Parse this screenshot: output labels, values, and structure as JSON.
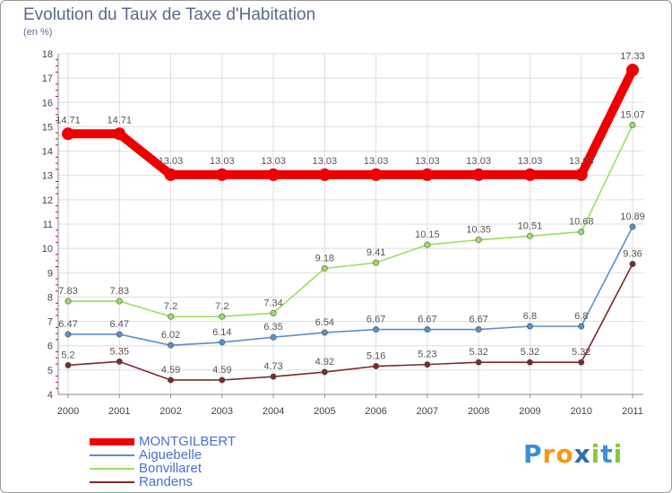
{
  "page": {
    "title": "Evolution du Taux de Taxe d'Habitation",
    "subtitle": "(en %)"
  },
  "logo": {
    "text": "Proxiti",
    "letters": [
      {
        "ch": "P",
        "color": "#3a8fd8"
      },
      {
        "ch": "r",
        "color": "#f29a1a"
      },
      {
        "ch": "o",
        "color": "#f29a1a"
      },
      {
        "ch": "x",
        "color": "#2a6fb0"
      },
      {
        "ch": "i",
        "color": "#8cc63f"
      },
      {
        "ch": "t",
        "color": "#3a8fd8"
      },
      {
        "ch": "i",
        "color": "#8cc63f"
      }
    ]
  },
  "chart_data": {
    "type": "line",
    "x": [
      "2000",
      "2001",
      "2002",
      "2003",
      "2004",
      "2005",
      "2006",
      "2007",
      "2008",
      "2009",
      "2010",
      "2011"
    ],
    "ylim": [
      4,
      18
    ],
    "yticks": [
      4,
      5,
      6,
      7,
      8,
      9,
      10,
      11,
      12,
      13,
      14,
      15,
      16,
      17,
      18
    ],
    "grid": true,
    "legend": "bottom-left",
    "series": [
      {
        "name": "MONTGILBERT",
        "color": "#ee0000",
        "width": 10,
        "labels": [
          "14.71",
          "14.71",
          "13.03",
          "13.03",
          "13.03",
          "13.03",
          "13.03",
          "13.03",
          "13.03",
          "13.03",
          "13.03",
          "17.33"
        ],
        "values": [
          14.71,
          14.71,
          13.03,
          13.03,
          13.03,
          13.03,
          13.03,
          13.03,
          13.03,
          13.03,
          13.03,
          17.33
        ]
      },
      {
        "name": "Aiguebelle",
        "color": "#5b8fc7",
        "width": 1.6,
        "labels": [
          "6.47",
          "6.47",
          "6.02",
          "6.14",
          "6.35",
          "6.54",
          "6.67",
          "6.67",
          "6.67",
          "6.8",
          "6.8",
          "10.89"
        ],
        "values": [
          6.47,
          6.47,
          6.02,
          6.14,
          6.35,
          6.54,
          6.67,
          6.67,
          6.67,
          6.8,
          6.8,
          10.89
        ]
      },
      {
        "name": "Bonvillaret",
        "color": "#99dd66",
        "width": 1.6,
        "labels": [
          "7.83",
          "7.83",
          "7.2",
          "7.2",
          "7.34",
          "9.18",
          "9.41",
          "10.15",
          "10.35",
          "10.51",
          "10.68",
          "15.07"
        ],
        "values": [
          7.83,
          7.83,
          7.2,
          7.2,
          7.34,
          9.18,
          9.41,
          10.15,
          10.35,
          10.51,
          10.68,
          15.07
        ]
      },
      {
        "name": "Randens",
        "color": "#7a2a2a",
        "width": 1.6,
        "labels": [
          "5.2",
          "5.35",
          "4.59",
          "4.59",
          "4.73",
          "4.92",
          "5.16",
          "5.23",
          "5.32",
          "5.32",
          "5.32",
          "9.36"
        ],
        "values": [
          5.2,
          5.35,
          4.59,
          4.59,
          4.73,
          4.92,
          5.16,
          5.23,
          5.32,
          5.32,
          5.32,
          9.36
        ]
      }
    ]
  }
}
